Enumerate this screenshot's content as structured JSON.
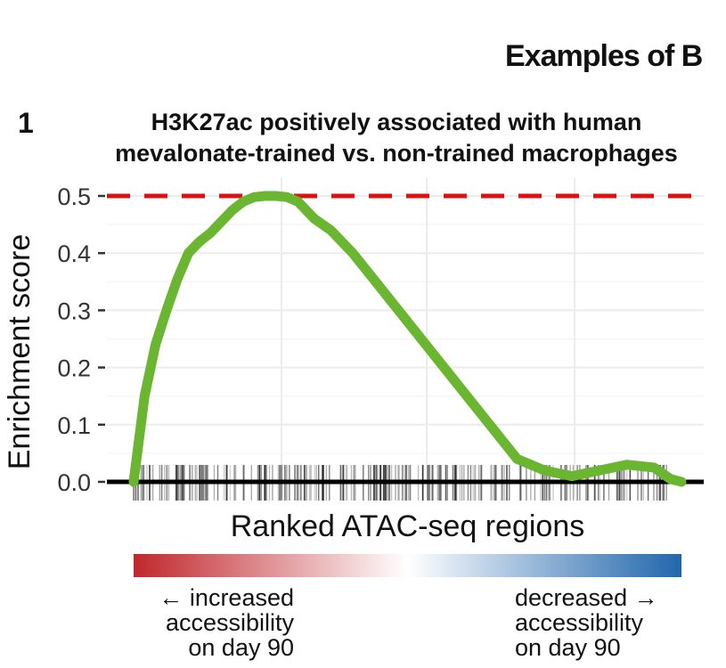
{
  "header": {
    "title": "Examples of B"
  },
  "panel": {
    "number": "1"
  },
  "chart_data": {
    "type": "line",
    "title": "H3K27ac positively associated with human mevalonate-trained vs. non-trained macrophages",
    "title_lines": [
      "H3K27ac positively associated with human",
      "mevalonate-trained vs. non-trained macrophages"
    ],
    "xlabel": "Ranked ATAC-seq regions",
    "ylabel": "Enrichment score",
    "ylim": [
      0,
      0.5
    ],
    "yticks": [
      "0.0",
      "0.1",
      "0.2",
      "0.3",
      "0.4",
      "0.5"
    ],
    "grid": true,
    "reference_line": {
      "value": 0.5,
      "style": "dashed",
      "color": "#dd1111"
    },
    "series": [
      {
        "color": "#6ab631",
        "x": [
          0,
          0.02,
          0.04,
          0.06,
          0.08,
          0.1,
          0.12,
          0.14,
          0.16,
          0.18,
          0.2,
          0.22,
          0.24,
          0.26,
          0.28,
          0.3,
          0.33,
          0.36,
          0.4,
          0.45,
          0.5,
          0.55,
          0.6,
          0.65,
          0.7,
          0.75,
          0.8,
          0.85,
          0.9,
          0.95,
          0.98,
          1.0
        ],
        "values": [
          0,
          0.15,
          0.24,
          0.3,
          0.355,
          0.4,
          0.42,
          0.435,
          0.455,
          0.475,
          0.49,
          0.498,
          0.5,
          0.5,
          0.498,
          0.49,
          0.46,
          0.44,
          0.4,
          0.34,
          0.28,
          0.22,
          0.16,
          0.1,
          0.04,
          0.02,
          0.01,
          0.02,
          0.03,
          0.025,
          0.005,
          0
        ]
      }
    ],
    "color_scale": {
      "from": "#c0272d",
      "mid": "#ffffff",
      "to": "#2166ac"
    },
    "accessibility_left": [
      "← increased",
      "accessibility",
      "on day 90"
    ],
    "accessibility_right": [
      "decreased →",
      "accessibility",
      "on day 90"
    ]
  }
}
